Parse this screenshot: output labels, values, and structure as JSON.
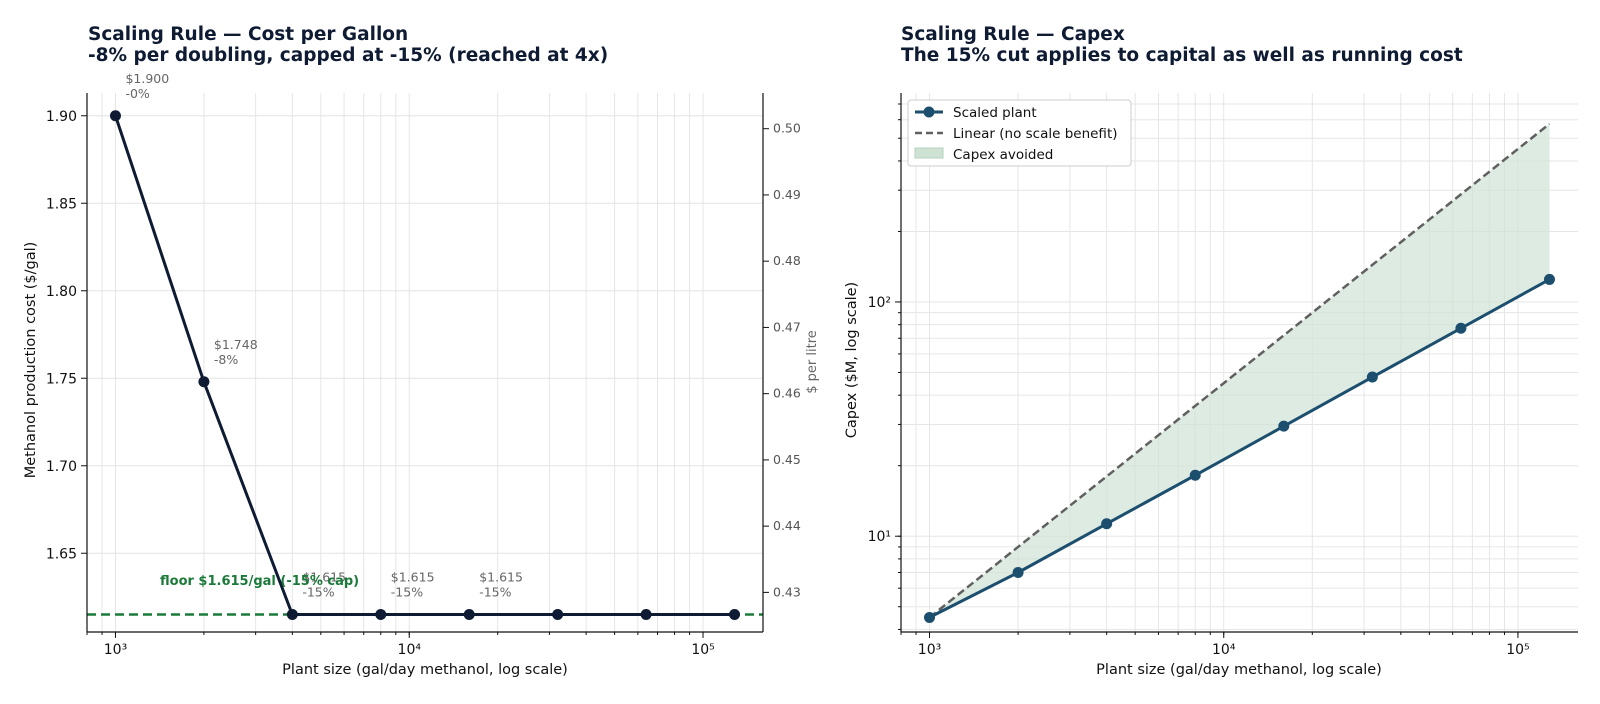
{
  "chart_data": [
    {
      "type": "line",
      "title": "Scaling Rule — Cost per Gallon",
      "subtitle": "-8% per doubling, capped at -15% (reached at 4x)",
      "xlabel": "Plant size (gal/day methanol, log scale)",
      "ylabel": "Methanol production cost ($/gal)",
      "ylabel_right": "$ per litre",
      "x_scale": "log",
      "xlim": [
        800,
        160000
      ],
      "ylim": [
        1.605,
        1.913
      ],
      "ylim_right": [
        0.42402,
        0.50539
      ],
      "x_ticks": [
        1000,
        10000,
        100000
      ],
      "x_tick_labels": [
        "10³",
        "10⁴",
        "10⁵"
      ],
      "y_ticks": [
        1.65,
        1.7,
        1.75,
        1.8,
        1.85,
        1.9
      ],
      "y_tick_labels": [
        "1.65",
        "1.70",
        "1.75",
        "1.80",
        "1.85",
        "1.90"
      ],
      "y_ticks_right": [
        0.43,
        0.44,
        0.45,
        0.46,
        0.47,
        0.48,
        0.49,
        0.5
      ],
      "y_tick_labels_right": [
        "0.43",
        "0.44",
        "0.45",
        "0.46",
        "0.47",
        "0.48",
        "0.49",
        "0.50"
      ],
      "grid": true,
      "series": [
        {
          "x": [
            1000,
            2000,
            4000,
            8000,
            16000,
            32000,
            64000,
            128000
          ],
          "values": [
            1.9,
            1.748,
            1.615,
            1.615,
            1.615,
            1.615,
            1.615,
            1.615
          ],
          "color": "#0e1b33"
        }
      ],
      "annotations": [
        {
          "x": 1000,
          "y": 1.9,
          "lines": [
            "$1.900",
            "-0%"
          ]
        },
        {
          "x": 2000,
          "y": 1.748,
          "lines": [
            "$1.748",
            "-8%"
          ]
        },
        {
          "x": 4000,
          "y": 1.615,
          "lines": [
            "$1.615",
            "-15%"
          ]
        },
        {
          "x": 8000,
          "y": 1.615,
          "lines": [
            "$1.615",
            "-15%"
          ]
        },
        {
          "x": 16000,
          "y": 1.615,
          "lines": [
            "$1.615",
            "-15%"
          ]
        }
      ],
      "reference_line": {
        "y": 1.615,
        "label": "floor $1.615/gal (-15% cap)",
        "color": "#1b7a3a",
        "style": "dashed"
      }
    },
    {
      "type": "line",
      "title": "Scaling Rule — Capex",
      "subtitle": "The 15% cut applies to capital as well as running cost",
      "xlabel": "Plant size (gal/day methanol, log scale)",
      "ylabel": "Capex ($M, log scale)",
      "x_scale": "log",
      "y_scale": "log",
      "xlim": [
        800,
        160000
      ],
      "ylim": [
        3.9,
        780
      ],
      "x_ticks": [
        1000,
        10000,
        100000
      ],
      "x_tick_labels": [
        "10³",
        "10⁴",
        "10⁵"
      ],
      "y_ticks": [
        10,
        100
      ],
      "y_tick_labels": [
        "10¹",
        "10²"
      ],
      "grid": true,
      "legend_position": "top-left",
      "series": [
        {
          "name": "Scaled plant",
          "style": "solid",
          "marker": "circle",
          "color": "#1c4e6e",
          "x": [
            1000,
            2000,
            4000,
            8000,
            16000,
            32000,
            64000,
            128000
          ],
          "values": [
            4.5,
            7.0,
            11.3,
            18.2,
            29.5,
            47.8,
            77.2,
            124.8
          ]
        },
        {
          "name": "Linear (no scale benefit)",
          "style": "dashed",
          "color": "#606060",
          "x": [
            1000,
            128000
          ],
          "values": [
            4.5,
            576
          ]
        }
      ],
      "fill_between": {
        "name": "Capex avoided",
        "color": "#cfe3d5",
        "between": [
          "Scaled plant",
          "Linear (no scale benefit)"
        ]
      }
    }
  ]
}
